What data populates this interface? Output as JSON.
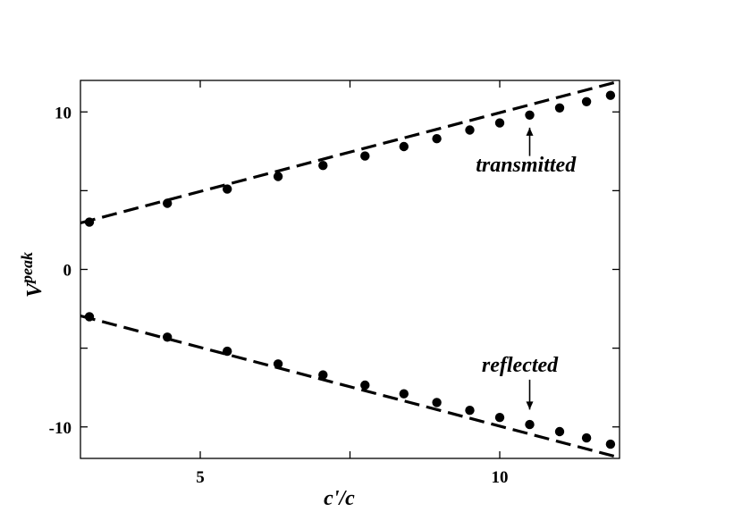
{
  "chart_data": {
    "type": "scatter",
    "xlabel": "c'/c",
    "ylabel_base": "V",
    "ylabel_superscript": "peak",
    "xlim": [
      3.0,
      12.0
    ],
    "ylim": [
      -12.0,
      12.0
    ],
    "x_ticks": [
      5,
      10
    ],
    "x_tick_labels": [
      "5",
      "10"
    ],
    "y_ticks": [
      -10,
      0,
      10
    ],
    "y_tick_labels": [
      "-10",
      "0",
      "10"
    ],
    "x_minor_ticks": [
      5,
      7.5,
      10
    ],
    "y_minor_ticks": [
      -10,
      -5,
      0,
      5,
      10
    ],
    "grid": false,
    "series": [
      {
        "kind": "points",
        "marker": "circle",
        "color": "#000000",
        "x": [
          3.15,
          4.45,
          5.45,
          6.3,
          7.05,
          7.75,
          8.4,
          8.95,
          9.5,
          10.0,
          10.5,
          11.0,
          11.45,
          11.85
        ],
        "y": [
          3.0,
          4.2,
          5.1,
          5.9,
          6.6,
          7.2,
          7.8,
          8.3,
          8.85,
          9.3,
          9.8,
          10.25,
          10.65,
          11.05
        ]
      },
      {
        "kind": "points",
        "marker": "circle",
        "color": "#000000",
        "x": [
          3.15,
          4.45,
          5.45,
          6.3,
          7.05,
          7.75,
          8.4,
          8.95,
          9.5,
          10.0,
          10.5,
          11.0,
          11.45,
          11.85
        ],
        "y": [
          -3.0,
          -4.3,
          -5.2,
          -6.0,
          -6.7,
          -7.35,
          -7.9,
          -8.45,
          -8.95,
          -9.4,
          -9.85,
          -10.3,
          -10.7,
          -11.1
        ]
      },
      {
        "kind": "line",
        "style": "dashed",
        "color": "#000000",
        "x": [
          3.0,
          12.0
        ],
        "y": [
          2.95,
          11.95
        ]
      },
      {
        "kind": "line",
        "style": "dashed",
        "color": "#000000",
        "x": [
          3.0,
          12.0
        ],
        "y": [
          -2.95,
          -11.95
        ]
      }
    ],
    "annotations": [
      {
        "text": "transmitted",
        "text_x": 9.6,
        "text_y": 6.2,
        "arrow_from": [
          10.5,
          7.2
        ],
        "arrow_to": [
          10.5,
          9.0
        ]
      },
      {
        "text": "reflected",
        "text_x": 9.7,
        "text_y": -6.5,
        "arrow_from": [
          10.5,
          -7.0
        ],
        "arrow_to": [
          10.5,
          -8.9
        ]
      }
    ]
  }
}
